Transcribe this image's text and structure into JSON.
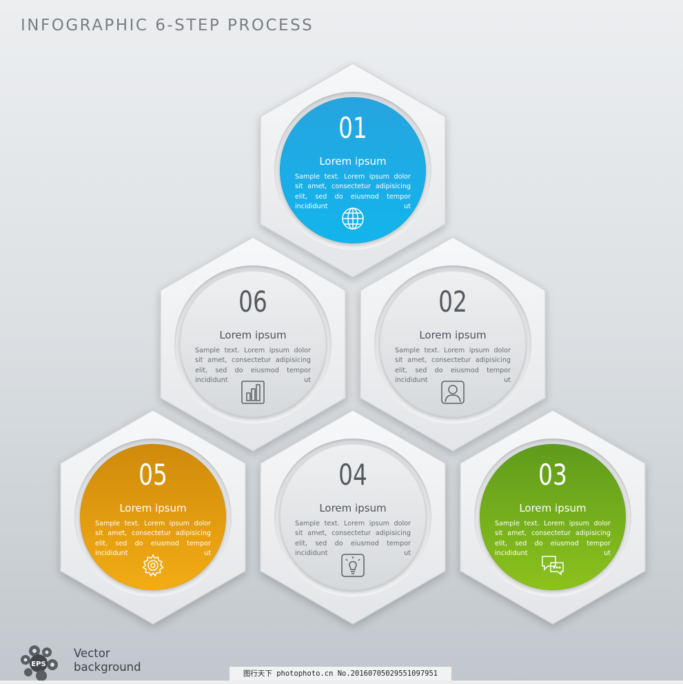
{
  "title": "INFOGRAPHIC 6-STEP PROCESS",
  "steps": [
    {
      "num": "01",
      "heading": "Lorem ipsum",
      "text": "Sample text. Lorem ipsum dolor sit amet, consectetur adipisicing elit, sed do eiusmod tempor incididunt ut",
      "icon": "globe-icon",
      "style": "blue",
      "color": "#1aa9e4"
    },
    {
      "num": "02",
      "heading": "Lorem ipsum",
      "text": "Sample text. Lorem ipsum dolor sit amet, consectetur adipisicing elit, sed do eiusmod tempor incididunt ut",
      "icon": "user-icon",
      "style": "gray",
      "color": "#dfe2e5"
    },
    {
      "num": "03",
      "heading": "Lorem ipsum",
      "text": "Sample text. Lorem ipsum dolor sit amet, consectetur adipisicing elit, sed do eiusmod tempor incididunt ut",
      "icon": "chat-icon",
      "style": "green",
      "color": "#7ab31d"
    },
    {
      "num": "04",
      "heading": "Lorem ipsum",
      "text": "Sample text. Lorem ipsum dolor sit amet, consectetur adipisicing elit, sed do eiusmod tempor incididunt ut",
      "icon": "lightbulb-icon",
      "style": "gray",
      "color": "#dfe2e5"
    },
    {
      "num": "05",
      "heading": "Lorem ipsum",
      "text": "Sample text. Lorem ipsum dolor sit amet, consectetur adipisicing elit, sed do eiusmod tempor incididunt ut",
      "icon": "gear-icon",
      "style": "orange",
      "color": "#e69d10"
    },
    {
      "num": "06",
      "heading": "Lorem ipsum",
      "text": "Sample text. Lorem ipsum dolor sit amet, consectetur adipisicing elit, sed do eiusmod tempor incididunt ut",
      "icon": "bar-chart-icon",
      "style": "gray",
      "color": "#dfe2e5"
    }
  ],
  "footer": {
    "logo_badge": "EPS",
    "logo_line1": "Vector",
    "logo_line2": "background",
    "watermark": "图行天下 photophoto.cn No.20160705029551097951"
  }
}
